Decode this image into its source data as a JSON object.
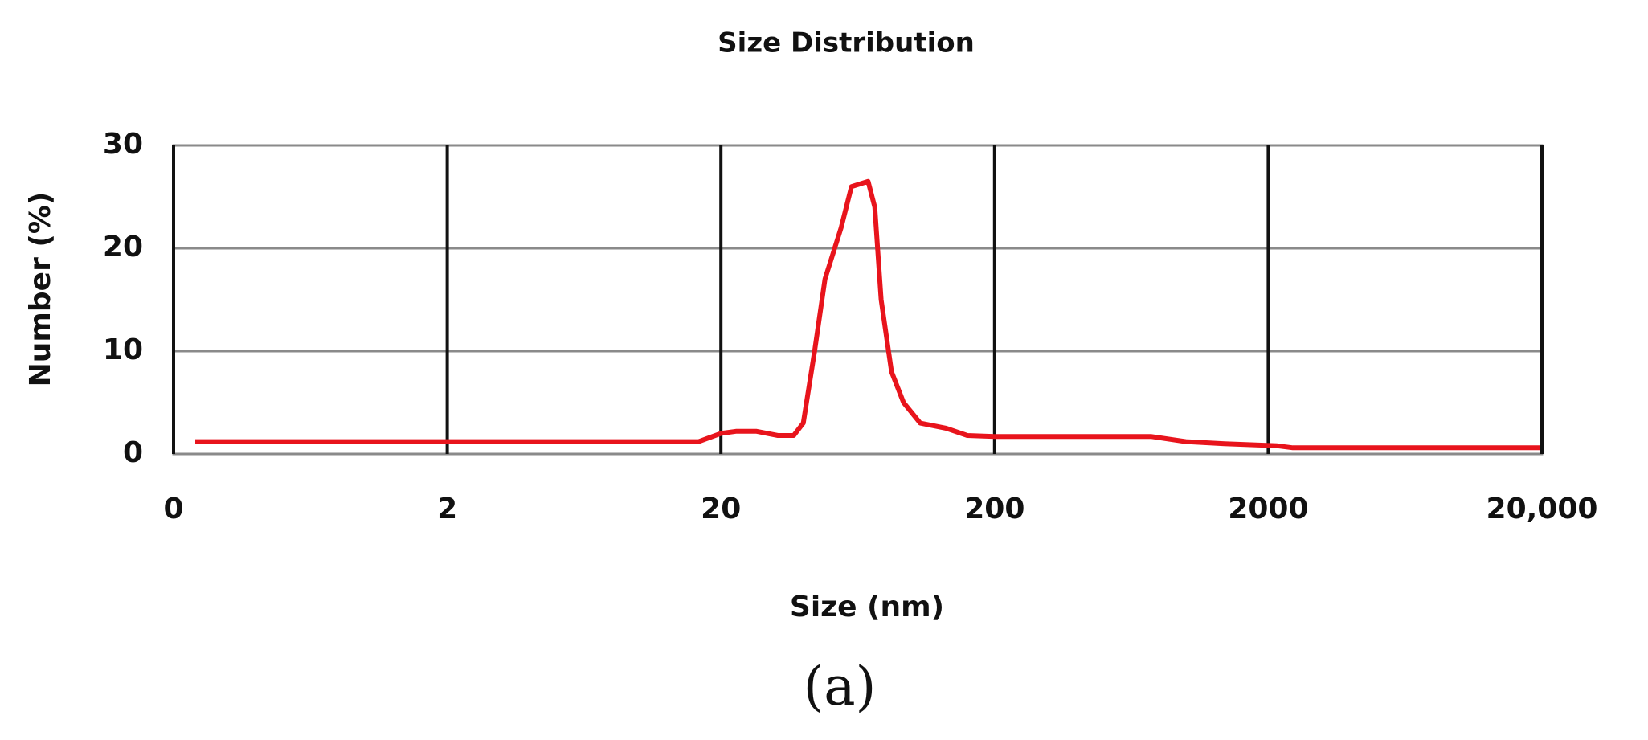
{
  "chart_data": {
    "type": "line",
    "title": "Size Distribution",
    "x_label": "Size (nm)",
    "y_label": "Number (%)",
    "caption": "(a)",
    "x_scale": "log",
    "x": [
      0.24,
      16.6,
      20,
      22.7,
      27,
      32.3,
      36.9,
      40,
      44,
      48,
      55,
      60,
      69,
      73,
      77,
      84,
      93,
      107,
      133,
      159,
      200,
      745,
      1000,
      1384,
      2154,
      2460,
      19600
    ],
    "series": [
      {
        "name": "Number",
        "color": "#e8141c",
        "values": [
          1.2,
          1.2,
          2,
          2.2,
          2.2,
          1.8,
          1.8,
          3,
          10,
          17,
          22,
          26,
          26.5,
          24,
          15,
          8,
          5,
          3,
          2.5,
          1.8,
          1.7,
          1.7,
          1.2,
          1.0,
          0.8,
          0.6,
          0.6
        ]
      }
    ],
    "xlim": [
      0.2,
      20000
    ],
    "xticks": [
      {
        "value": 0.2,
        "label": "0"
      },
      2,
      20,
      200,
      2000,
      {
        "value": 20000,
        "label": "20,000"
      }
    ],
    "ylim": [
      0,
      30
    ],
    "yticks": [
      0,
      10,
      20,
      30
    ],
    "grid": true
  }
}
